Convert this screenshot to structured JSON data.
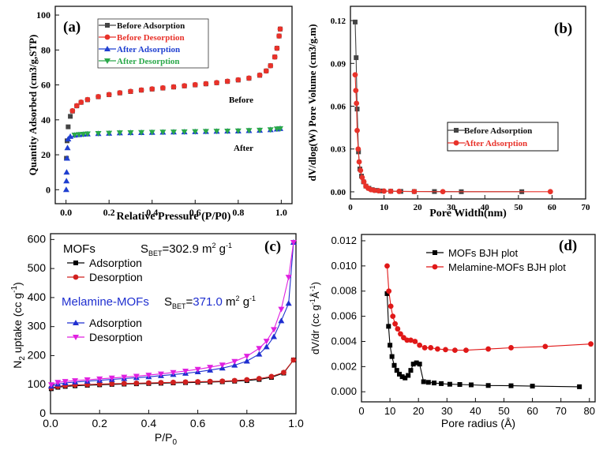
{
  "chart_data": [
    {
      "panel": "(a)",
      "type": "scatter",
      "title": "",
      "xlabel": "Relative Pressure (P/P0)",
      "ylabel": "Quantity Adsorbed (cm3/g,STP)",
      "xlim": [
        -0.05,
        1.05
      ],
      "ylim": [
        -8,
        105
      ],
      "xticks": [
        "0.0",
        "0.2",
        "0.4",
        "0.6",
        "0.8",
        "1.0"
      ],
      "yticks": [
        "0",
        "20",
        "40",
        "60",
        "80",
        "100"
      ],
      "legend_position": "top-left",
      "annotations": [
        "Before",
        "After"
      ],
      "series": [
        {
          "name": "Before Adsorption",
          "color": "#444444",
          "marker": "square",
          "x": [
            0.002,
            0.005,
            0.01,
            0.02,
            0.03,
            0.05,
            0.07,
            0.1,
            0.15,
            0.2,
            0.25,
            0.3,
            0.35,
            0.4,
            0.45,
            0.5,
            0.55,
            0.6,
            0.65,
            0.7,
            0.75,
            0.8,
            0.85,
            0.9,
            0.93,
            0.95,
            0.97,
            0.98,
            0.99,
            0.995
          ],
          "y": [
            18,
            28,
            36,
            42,
            45,
            48,
            50,
            51.5,
            53.2,
            54.4,
            55.4,
            56.2,
            57,
            57.6,
            58.2,
            58.8,
            59.4,
            60,
            60.6,
            61.2,
            62,
            62.8,
            63.8,
            65.5,
            68,
            71,
            76,
            81,
            88,
            92
          ]
        },
        {
          "name": "Before Desorption",
          "color": "#e8322a",
          "marker": "circle",
          "x": [
            0.995,
            0.99,
            0.98,
            0.97,
            0.95,
            0.93,
            0.9,
            0.85,
            0.8,
            0.75,
            0.7,
            0.65,
            0.6,
            0.55,
            0.5,
            0.45,
            0.4,
            0.35,
            0.3,
            0.25,
            0.2,
            0.15,
            0.1,
            0.07,
            0.05,
            0.03
          ],
          "y": [
            92,
            88,
            81,
            76,
            71,
            68,
            65.6,
            63.9,
            62.9,
            62.1,
            61.3,
            60.7,
            60.1,
            59.5,
            58.9,
            58.3,
            57.7,
            57.1,
            56.3,
            55.5,
            54.5,
            53.3,
            51.6,
            50.1,
            48.1,
            45.2
          ]
        },
        {
          "name": "After  Adsorption",
          "color": "#1f3fd0",
          "marker": "triangle-up",
          "x": [
            0.001,
            0.002,
            0.003,
            0.005,
            0.007,
            0.01,
            0.02,
            0.04,
            0.06,
            0.08,
            0.1,
            0.15,
            0.2,
            0.25,
            0.3,
            0.35,
            0.4,
            0.45,
            0.5,
            0.55,
            0.6,
            0.65,
            0.7,
            0.75,
            0.8,
            0.85,
            0.9,
            0.95,
            0.98,
            0.995
          ],
          "y": [
            0,
            5,
            10,
            18,
            24,
            29,
            30.5,
            31.2,
            31.5,
            31.7,
            31.9,
            32.1,
            32.3,
            32.5,
            32.6,
            32.7,
            32.8,
            32.9,
            33.0,
            33.1,
            33.2,
            33.3,
            33.4,
            33.5,
            33.6,
            33.8,
            34.0,
            34.3,
            34.7,
            35
          ]
        },
        {
          "name": "After  Desorption",
          "color": "#2aa84a",
          "marker": "triangle-down",
          "x": [
            0.995,
            0.98,
            0.95,
            0.9,
            0.85,
            0.8,
            0.75,
            0.7,
            0.65,
            0.6,
            0.55,
            0.5,
            0.45,
            0.4,
            0.35,
            0.3,
            0.25,
            0.2,
            0.15,
            0.1,
            0.08,
            0.06,
            0.04
          ],
          "y": [
            35,
            34.8,
            34.4,
            34.1,
            33.9,
            33.7,
            33.6,
            33.5,
            33.4,
            33.3,
            33.2,
            33.1,
            33.0,
            32.9,
            32.8,
            32.7,
            32.6,
            32.4,
            32.2,
            32.0,
            31.8,
            31.6,
            31.3
          ]
        }
      ]
    },
    {
      "panel": "(b)",
      "type": "line",
      "title": "",
      "xlabel": "Pore Width(nm)",
      "ylabel": "dV/dlog(W) Pore Volume (cm3/g.m)",
      "xlim": [
        0,
        70
      ],
      "ylim": [
        -0.005,
        0.13
      ],
      "xticks": [
        "0",
        "10",
        "20",
        "30",
        "40",
        "50",
        "60",
        "70"
      ],
      "yticks": [
        "0.00",
        "0.03",
        "0.06",
        "0.09",
        "0.12"
      ],
      "legend_position": "center-right",
      "series": [
        {
          "name": "Before Adsorption",
          "color": "#444444",
          "marker": "square",
          "x": [
            1.4,
            1.7,
            2.0,
            2.4,
            2.8,
            3.3,
            3.9,
            4.6,
            5.5,
            6.5,
            7.8,
            9.5,
            12,
            15,
            19,
            25,
            33,
            51
          ],
          "y": [
            0.119,
            0.094,
            0.058,
            0.028,
            0.016,
            0.011,
            0.007,
            0.004,
            0.0025,
            0.0015,
            0.001,
            0.0006,
            0.0004,
            0.0003,
            0.0002,
            0.0002,
            0.0001,
            0.0001
          ]
        },
        {
          "name": "After  Adsorption",
          "color": "#e8322a",
          "marker": "circle",
          "x": [
            1.4,
            1.6,
            1.8,
            2.0,
            2.3,
            2.6,
            3.0,
            3.5,
            4.0,
            4.6,
            5.3,
            6.1,
            7.1,
            8.4,
            10,
            12,
            14.5,
            19,
            27.5,
            59.5
          ],
          "y": [
            0.082,
            0.071,
            0.062,
            0.043,
            0.03,
            0.021,
            0.015,
            0.01,
            0.007,
            0.004,
            0.0025,
            0.0015,
            0.001,
            0.0007,
            0.0005,
            0.0004,
            0.0003,
            0.0002,
            0.0001,
            0.0001
          ]
        }
      ]
    },
    {
      "panel": "(c)",
      "type": "line",
      "title": "",
      "xlabel": "P/P0",
      "ylabel": "N2 uptake (cc g-1)",
      "xlim": [
        0.0,
        1.0
      ],
      "ylim": [
        0,
        620
      ],
      "xticks": [
        "0.0",
        "0.2",
        "0.4",
        "0.6",
        "0.8",
        "1.0"
      ],
      "yticks": [
        "0",
        "100",
        "200",
        "300",
        "400",
        "500",
        "600"
      ],
      "legend_position": "top-left",
      "annotations": {
        "mofs_heading": "MOFs",
        "mofs_sbet": "SBET=302.9 m2 g-1",
        "melamine_heading": "Melamine-MOFs",
        "melamine_sbet": "SBET=371.0 m2 g-1"
      },
      "series": [
        {
          "name": "Adsorption",
          "group": "MOFs",
          "color": "#000000",
          "marker": "square",
          "x": [
            0.003,
            0.03,
            0.06,
            0.1,
            0.15,
            0.2,
            0.25,
            0.3,
            0.35,
            0.4,
            0.45,
            0.5,
            0.55,
            0.6,
            0.65,
            0.7,
            0.75,
            0.8,
            0.85,
            0.9,
            0.95,
            0.99
          ],
          "y": [
            86,
            91,
            94,
            96,
            98,
            99.5,
            101,
            102,
            103,
            104,
            105,
            106,
            107,
            108,
            109,
            110,
            112,
            114,
            118,
            125,
            140,
            185
          ]
        },
        {
          "name": "Desorption",
          "group": "MOFs",
          "color": "#d1201f",
          "marker": "circle",
          "x": [
            0.99,
            0.95,
            0.9,
            0.85,
            0.8,
            0.75,
            0.7,
            0.65,
            0.6,
            0.55,
            0.5,
            0.45,
            0.4,
            0.35,
            0.3,
            0.25,
            0.2,
            0.15,
            0.1,
            0.06,
            0.03,
            0.003
          ],
          "y": [
            185,
            142,
            128,
            121,
            117,
            114,
            112,
            111,
            110,
            109,
            108,
            107,
            106,
            105,
            104,
            103,
            102,
            100.5,
            99,
            97,
            94,
            89
          ]
        },
        {
          "name": "Adsorption",
          "group": "Melamine-MOFs",
          "color": "#1f2fd0",
          "marker": "triangle-up",
          "x": [
            0.003,
            0.03,
            0.06,
            0.1,
            0.15,
            0.2,
            0.25,
            0.3,
            0.35,
            0.4,
            0.45,
            0.5,
            0.55,
            0.6,
            0.65,
            0.7,
            0.75,
            0.8,
            0.85,
            0.88,
            0.91,
            0.94,
            0.97,
            0.99
          ],
          "y": [
            95,
            102,
            106,
            109,
            112,
            115,
            118,
            121,
            124,
            127,
            131,
            135,
            139,
            144,
            150,
            157,
            167,
            181,
            205,
            230,
            265,
            320,
            380,
            590
          ]
        },
        {
          "name": "Desorption",
          "group": "Melamine-MOFs",
          "color": "#e020e0",
          "marker": "triangle-down",
          "x": [
            0.99,
            0.97,
            0.94,
            0.91,
            0.88,
            0.85,
            0.8,
            0.75,
            0.7,
            0.65,
            0.6,
            0.55,
            0.5,
            0.45,
            0.4,
            0.35,
            0.3,
            0.25,
            0.2,
            0.15,
            0.1,
            0.06,
            0.03,
            0.003
          ],
          "y": [
            590,
            470,
            360,
            290,
            250,
            225,
            198,
            180,
            168,
            160,
            153,
            147,
            142,
            137,
            133,
            129,
            126,
            123,
            120,
            117,
            114,
            111,
            108,
            100
          ]
        }
      ]
    },
    {
      "panel": "(d)",
      "type": "line",
      "title": "",
      "xlabel": "Pore radius (Å)",
      "ylabel": "dV/dr (cc g-1Å-1)",
      "xlim": [
        0,
        82
      ],
      "ylim": [
        -0.0008,
        0.0125
      ],
      "xticks": [
        "0",
        "10",
        "20",
        "30",
        "40",
        "50",
        "60",
        "70",
        "80"
      ],
      "yticks": [
        "0.000",
        "0.002",
        "0.004",
        "0.006",
        "0.008",
        "0.010",
        "0.012"
      ],
      "legend_position": "top-center",
      "series": [
        {
          "name": "MOFs BJH plot",
          "color": "#000000",
          "marker": "square",
          "x": [
            9.0,
            9.5,
            10.0,
            10.7,
            11.5,
            12.4,
            13.3,
            14.3,
            15.3,
            16.4,
            17.3,
            18.2,
            19.3,
            20.4,
            21.8,
            23.5,
            25.5,
            28,
            31,
            34.5,
            38.5,
            44.5,
            52.5,
            60,
            76.5
          ],
          "y": [
            0.0078,
            0.0052,
            0.0037,
            0.0028,
            0.0021,
            0.0017,
            0.0014,
            0.0012,
            0.0011,
            0.0013,
            0.0017,
            0.0022,
            0.0023,
            0.0022,
            0.0008,
            0.00075,
            0.0007,
            0.00065,
            0.0006,
            0.00058,
            0.00055,
            0.0005,
            0.00048,
            0.00045,
            0.0004
          ]
        },
        {
          "name": "Melamine-MOFs BJH plot",
          "color": "#e01818",
          "marker": "circle",
          "x": [
            9.0,
            9.6,
            10.3,
            11.0,
            11.8,
            12.7,
            13.7,
            14.8,
            16.0,
            17.3,
            18.8,
            20.4,
            22.2,
            24.3,
            26.7,
            29.5,
            32.8,
            36.7,
            44.5,
            52.5,
            64.5,
            80.5
          ],
          "y": [
            0.01,
            0.008,
            0.0068,
            0.006,
            0.0054,
            0.005,
            0.0046,
            0.0043,
            0.0041,
            0.0041,
            0.004,
            0.0037,
            0.0035,
            0.0035,
            0.0034,
            0.00335,
            0.0033,
            0.0033,
            0.0034,
            0.0035,
            0.0036,
            0.0038
          ]
        }
      ]
    }
  ]
}
